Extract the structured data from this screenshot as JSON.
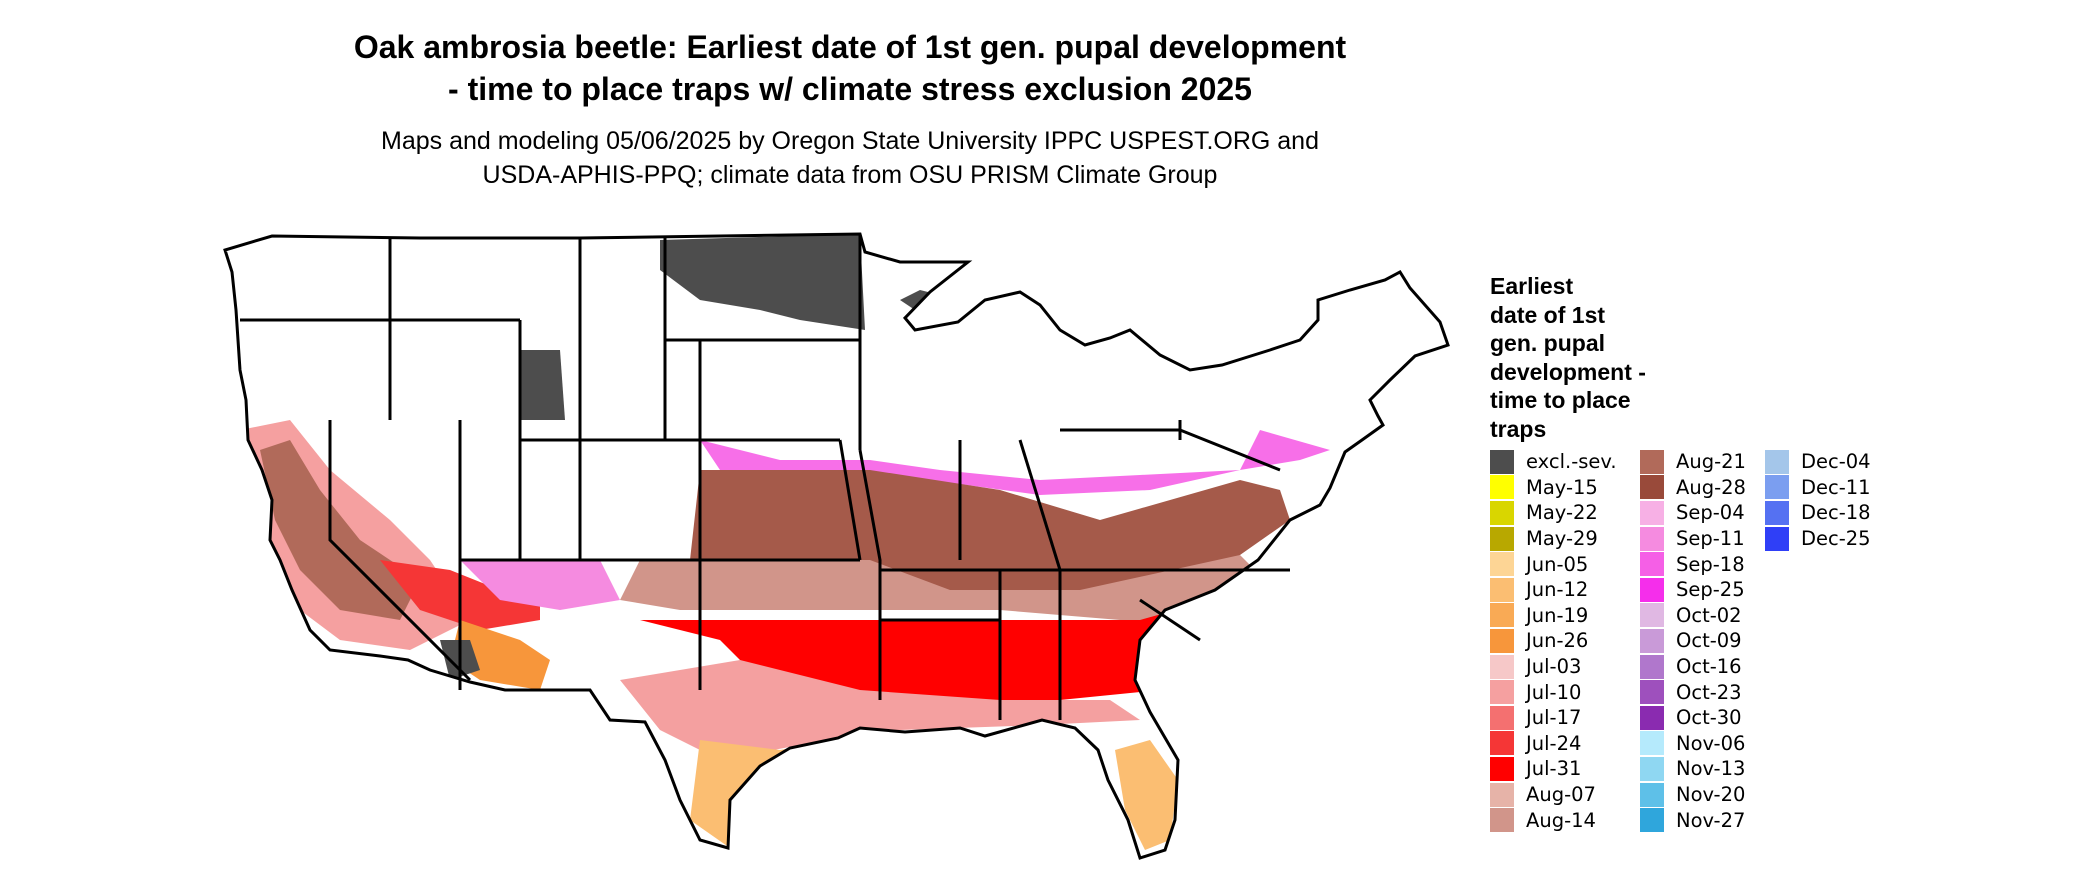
{
  "title": {
    "line1": "Oak ambrosia beetle: Earliest date of 1st gen. pupal development",
    "line2": "- time to place traps w/ climate stress exclusion 2025"
  },
  "subtitle": {
    "line1": "Maps and modeling 05/06/2025 by Oregon State University IPPC USPEST.ORG and",
    "line2": "USDA-APHIS-PPQ; climate data from OSU PRISM Climate Group"
  },
  "legend": {
    "title_lines": [
      "Earliest",
      "date of 1st",
      "gen. pupal",
      "development -",
      "time to place",
      "traps"
    ],
    "columns": [
      [
        {
          "label": "excl.-sev.",
          "color": "#4d4d4d"
        },
        {
          "label": "May-15",
          "color": "#ffff00"
        },
        {
          "label": "May-22",
          "color": "#d9d600"
        },
        {
          "label": "May-29",
          "color": "#b8a800"
        },
        {
          "label": "Jun-05",
          "color": "#fdd595"
        },
        {
          "label": "Jun-12",
          "color": "#fbbe72"
        },
        {
          "label": "Jun-19",
          "color": "#f9aa55"
        },
        {
          "label": "Jun-26",
          "color": "#f7963b"
        },
        {
          "label": "Jul-03",
          "color": "#f6c8c8"
        },
        {
          "label": "Jul-10",
          "color": "#f5a0a0"
        },
        {
          "label": "Jul-17",
          "color": "#f47070"
        },
        {
          "label": "Jul-24",
          "color": "#f53636"
        },
        {
          "label": "Jul-31",
          "color": "#ff0000"
        },
        {
          "label": "Aug-07",
          "color": "#e6b3a8"
        },
        {
          "label": "Aug-14",
          "color": "#d1958a"
        }
      ],
      [
        {
          "label": "Aug-21",
          "color": "#b16a5a"
        },
        {
          "label": "Aug-28",
          "color": "#994a3a"
        },
        {
          "label": "Sep-04",
          "color": "#f7b0e5"
        },
        {
          "label": "Sep-11",
          "color": "#f58be0"
        },
        {
          "label": "Sep-18",
          "color": "#f55fe6"
        },
        {
          "label": "Sep-25",
          "color": "#f52eeb"
        },
        {
          "label": "Oct-02",
          "color": "#e0b8e3"
        },
        {
          "label": "Oct-09",
          "color": "#c99ad8"
        },
        {
          "label": "Oct-16",
          "color": "#b077cc"
        },
        {
          "label": "Oct-23",
          "color": "#9e50bd"
        },
        {
          "label": "Oct-30",
          "color": "#8a2bb0"
        },
        {
          "label": "Nov-06",
          "color": "#b5eafc"
        },
        {
          "label": "Nov-13",
          "color": "#8fd7f2"
        },
        {
          "label": "Nov-20",
          "color": "#5ec0e8"
        },
        {
          "label": "Nov-27",
          "color": "#2fa6dc"
        }
      ],
      [
        {
          "label": "Dec-04",
          "color": "#a4c6ea"
        },
        {
          "label": "Dec-11",
          "color": "#7b9ef0"
        },
        {
          "label": "Dec-18",
          "color": "#5571f2"
        },
        {
          "label": "Dec-25",
          "color": "#2f3ff7"
        }
      ]
    ]
  },
  "map_colors": {
    "excluded": "#4d4d4d",
    "no_development": "#ffffff",
    "state_border": "#000000"
  }
}
